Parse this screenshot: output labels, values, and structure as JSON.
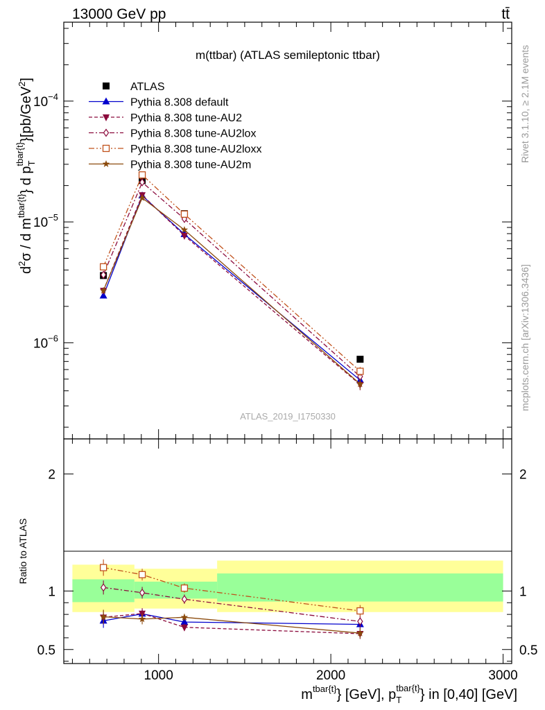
{
  "header": {
    "beam": "13000 GeV pp",
    "process": "tt̄",
    "title": "m(ttbar) (ATLAS semileptonic ttbar)",
    "analysis": "ATLAS_2019_I1750330",
    "side_rivet": "Rivet 3.1.10, ≥ 2.1M events",
    "side_mcplots": "mcplots.cern.ch [arXiv:1306.3436]"
  },
  "chart_data": [
    {
      "type": "scatter",
      "panel": "main",
      "ylabel": "d²σ / d m^{tbar{t}} d p_T^{tbar{t}} [pb/GeV²]",
      "y_scale": "log",
      "ylim": [
        1.6e-07,
        0.00045
      ],
      "xlim": [
        450,
        3050
      ],
      "y_ticks": [
        {
          "value": 1e-06,
          "mantissa": "10",
          "exp": "−6"
        },
        {
          "value": 1e-05,
          "mantissa": "10",
          "exp": "−5"
        },
        {
          "value": 0.0001,
          "mantissa": "10",
          "exp": "−4"
        }
      ],
      "x": [
        680,
        905,
        1150,
        2170
      ],
      "series": [
        {
          "name": "ATLAS",
          "color": "#000000",
          "marker": "square-filled",
          "line": "none",
          "values": [
            3.6e-06,
            2.2e-05,
            1.17e-05,
            7.3e-07
          ],
          "err": [
            2e-07,
            1.2e-06,
            5e-07,
            3e-08
          ]
        },
        {
          "name": "Pythia 8.308 default",
          "color": "#0000cc",
          "marker": "triangle-up",
          "line": "solid",
          "values": [
            2.45e-06,
            1.65e-05,
            7.9e-06,
            4.9e-07
          ],
          "err": [
            1.2e-07,
            6e-07,
            3e-07,
            4.5e-08
          ]
        },
        {
          "name": "Pythia 8.308 tune-AU2",
          "color": "#8b0a3c",
          "marker": "triangle-down",
          "line": "dashed",
          "values": [
            2.7e-06,
            1.67e-05,
            7.7e-06,
            4.5e-07
          ],
          "err": [
            1.2e-07,
            6e-07,
            3e-07,
            4.5e-08
          ]
        },
        {
          "name": "Pythia 8.308 tune-AU2lox",
          "color": "#8b0a3c",
          "marker": "diamond-open",
          "line": "dashdot",
          "values": [
            3.65e-06,
            2.13e-05,
            1.06e-05,
            5.25e-07
          ],
          "err": [
            1.5e-07,
            7e-07,
            3.5e-07,
            5e-08
          ]
        },
        {
          "name": "Pythia 8.308 tune-AU2loxx",
          "color": "#c0501a",
          "marker": "square-open",
          "line": "dashdotdot",
          "values": [
            4.25e-06,
            2.45e-05,
            1.16e-05,
            5.8e-07
          ],
          "err": [
            1.5e-07,
            8e-07,
            4e-07,
            5e-08
          ]
        },
        {
          "name": "Pythia 8.308 tune-AU2m",
          "color": "#8b4a0c",
          "marker": "star",
          "line": "solid",
          "values": [
            2.7e-06,
            1.58e-05,
            8.6e-06,
            4.55e-07
          ],
          "err": [
            1.2e-07,
            6e-07,
            3e-07,
            4.5e-08
          ]
        }
      ]
    },
    {
      "type": "scatter",
      "panel": "ratio",
      "ylabel": "Ratio to ATLAS",
      "ylim": [
        0.38,
        2.3
      ],
      "xlim": [
        450,
        3050
      ],
      "y_ticks": [
        "0.5",
        "1",
        "2"
      ],
      "y_tick_values": [
        0.5,
        1,
        2
      ],
      "x_ticks": [
        "1000",
        "2000",
        "3000"
      ],
      "x_tick_values": [
        1000,
        2000,
        3000
      ],
      "xlabel": "m^{tbar{t}} [GeV], p_T^{tbar{t}} in [0,40] [GeV]",
      "bins": [
        {
          "lo": 500,
          "hi": 860,
          "inner": [
            0.905,
            1.1
          ],
          "outer": [
            0.82,
            1.225
          ]
        },
        {
          "lo": 860,
          "hi": 1340,
          "inner": [
            0.935,
            1.08
          ],
          "outer": [
            0.85,
            1.19
          ]
        },
        {
          "lo": 1340,
          "hi": 3000,
          "inner": [
            0.91,
            1.15
          ],
          "outer": [
            0.82,
            1.26
          ]
        }
      ],
      "x": [
        680,
        905,
        1150,
        2170
      ],
      "series": [
        {
          "name": "Pythia 8.308 default",
          "values": [
            0.745,
            0.805,
            0.735,
            0.715
          ],
          "err": [
            0.06,
            0.045,
            0.03,
            0.045
          ]
        },
        {
          "name": "Pythia 8.308 tune-AU2",
          "values": [
            0.775,
            0.808,
            0.69,
            0.635
          ],
          "err": [
            0.06,
            0.045,
            0.03,
            0.045
          ]
        },
        {
          "name": "Pythia 8.308 tune-AU2lox",
          "values": [
            1.03,
            0.985,
            0.93,
            0.74
          ],
          "err": [
            0.06,
            0.05,
            0.04,
            0.05
          ]
        },
        {
          "name": "Pythia 8.308 tune-AU2loxx",
          "values": [
            1.2,
            1.14,
            1.025,
            0.83
          ],
          "err": [
            0.07,
            0.05,
            0.04,
            0.05
          ]
        },
        {
          "name": "Pythia 8.308 tune-AU2m",
          "values": [
            0.78,
            0.76,
            0.775,
            0.64
          ],
          "err": [
            0.06,
            0.045,
            0.03,
            0.045
          ]
        }
      ]
    }
  ]
}
